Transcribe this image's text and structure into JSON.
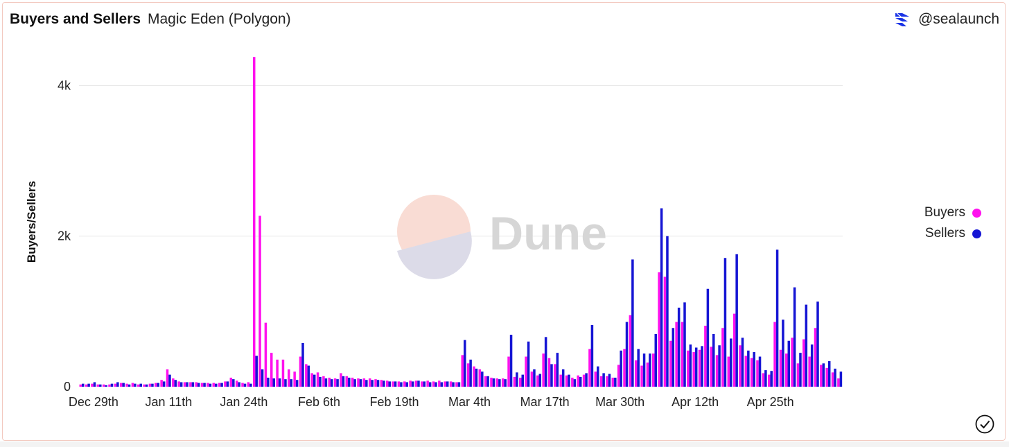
{
  "header": {
    "title": "Buyers and Sellers",
    "subtitle": "Magic Eden (Polygon)"
  },
  "brand": {
    "handle": "@sealaunch",
    "icon": "sealaunch-logo-icon"
  },
  "watermark": {
    "text": "Dune"
  },
  "status_icon": "check-circle-icon",
  "colors": {
    "buyers": "#ff11ee",
    "sellers": "#1515d4",
    "grid": "#e8e8e8",
    "card_border": "#f3c9bf"
  },
  "chart_data": {
    "type": "bar",
    "title": "Buyers and Sellers",
    "subtitle": "Magic Eden (Polygon)",
    "ylabel": "Buyers/Sellers",
    "xlabel": "",
    "ylim": [
      0,
      4400
    ],
    "yticks": [
      0,
      2000,
      4000
    ],
    "ytick_labels": [
      "0",
      "2k",
      "4k"
    ],
    "x_start_date": "Dec 27th",
    "x_tick_labels": [
      "Dec 29th",
      "Jan 11th",
      "Jan 24th",
      "Feb 6th",
      "Feb 19th",
      "Mar 4th",
      "Mar 17th",
      "Mar 30th",
      "Apr 12th",
      "Apr 25th"
    ],
    "grid": true,
    "legend_position": "right",
    "series": [
      {
        "name": "Buyers",
        "values": [
          30,
          30,
          40,
          30,
          30,
          30,
          40,
          50,
          40,
          50,
          30,
          30,
          40,
          50,
          90,
          230,
          110,
          70,
          60,
          60,
          60,
          50,
          50,
          50,
          50,
          70,
          120,
          80,
          50,
          60,
          4380,
          2270,
          850,
          450,
          360,
          360,
          230,
          200,
          400,
          300,
          180,
          190,
          140,
          120,
          110,
          180,
          140,
          120,
          110,
          110,
          110,
          100,
          90,
          80,
          70,
          70,
          70,
          80,
          80,
          70,
          80,
          70,
          80,
          70,
          70,
          60,
          420,
          310,
          270,
          230,
          140,
          120,
          110,
          110,
          400,
          130,
          120,
          400,
          200,
          150,
          440,
          380,
          300,
          160,
          150,
          120,
          150,
          160,
          500,
          200,
          140,
          140,
          120,
          290,
          500,
          950,
          350,
          280,
          320,
          440,
          1520,
          1460,
          610,
          860,
          860,
          480,
          460,
          490,
          810,
          530,
          420,
          780,
          400,
          970,
          550,
          410,
          380,
          350,
          180,
          160,
          860,
          490,
          440,
          650,
          310,
          630,
          400,
          780,
          290,
          250,
          190,
          110
        ],
        "color": "#ff11ee"
      },
      {
        "name": "Sellers",
        "values": [
          40,
          40,
          60,
          30,
          20,
          40,
          60,
          50,
          30,
          40,
          40,
          30,
          40,
          50,
          70,
          160,
          90,
          60,
          60,
          60,
          50,
          50,
          40,
          40,
          50,
          70,
          100,
          60,
          40,
          40,
          410,
          230,
          120,
          110,
          110,
          100,
          100,
          90,
          580,
          280,
          160,
          130,
          110,
          100,
          100,
          140,
          120,
          100,
          100,
          90,
          90,
          90,
          80,
          70,
          70,
          60,
          60,
          70,
          80,
          70,
          60,
          60,
          60,
          70,
          60,
          60,
          620,
          360,
          240,
          200,
          140,
          110,
          100,
          100,
          690,
          190,
          160,
          600,
          230,
          170,
          660,
          300,
          450,
          230,
          160,
          100,
          130,
          180,
          820,
          270,
          180,
          170,
          120,
          480,
          860,
          1690,
          500,
          440,
          440,
          700,
          2370,
          2000,
          780,
          1050,
          1120,
          560,
          520,
          540,
          1300,
          700,
          550,
          1710,
          640,
          1760,
          650,
          480,
          460,
          400,
          220,
          210,
          1820,
          890,
          610,
          1320,
          450,
          1090,
          560,
          1130,
          310,
          340,
          240,
          200
        ],
        "color": "#1515d4"
      }
    ]
  }
}
